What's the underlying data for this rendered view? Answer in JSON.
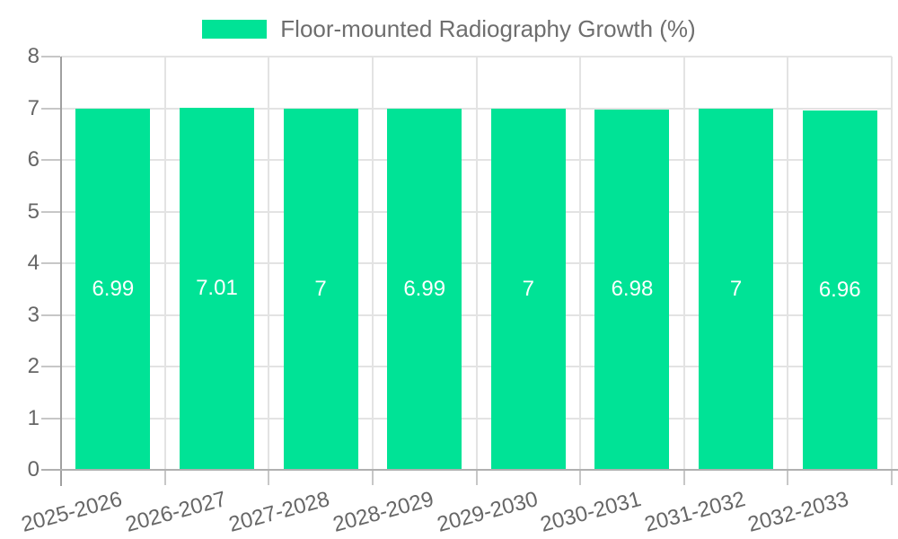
{
  "legend": {
    "label": "Floor-mounted Radiography Growth (%)",
    "swatch_color": "#00E396"
  },
  "chart_data": {
    "type": "bar",
    "title": "Floor-mounted Radiography Growth (%)",
    "categories": [
      "2025-2026",
      "2026-2027",
      "2027-2028",
      "2028-2029",
      "2029-2030",
      "2030-2031",
      "2031-2032",
      "2032-2033"
    ],
    "series": [
      {
        "name": "Floor-mounted Radiography Growth (%)",
        "values": [
          6.99,
          7.01,
          7,
          6.99,
          7,
          6.98,
          7,
          6.96
        ],
        "value_labels": [
          "6.99",
          "7.01",
          "7",
          "6.99",
          "7",
          "6.98",
          "7",
          "6.96"
        ],
        "color": "#00E396"
      }
    ],
    "xlabel": "",
    "ylabel": "",
    "ylim": [
      0,
      8
    ],
    "yticks": [
      0,
      1,
      2,
      3,
      4,
      5,
      6,
      7,
      8
    ],
    "grid": true,
    "legend_position": "top",
    "x_label_rotation": -15,
    "axis_label_color": "#666666",
    "value_label_color": "#ffffff"
  }
}
